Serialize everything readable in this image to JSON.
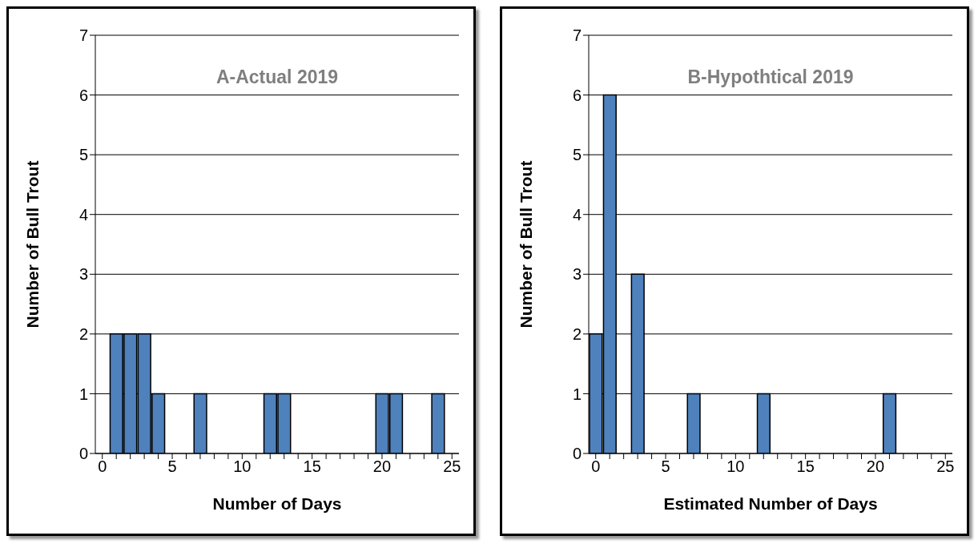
{
  "chart_data": [
    {
      "type": "histogram",
      "title": "A-Actual 2019",
      "xlabel": "Number of Days",
      "ylabel": "Number of Bull Trout",
      "color": "#4f81bd",
      "bins": [
        -0.5,
        0.5,
        1.5,
        2.5,
        3.5,
        4.5,
        5.5,
        6.5,
        7.5,
        8.5,
        9.5,
        10.5,
        11.5,
        12.5,
        13.5,
        14.5,
        15.5,
        16.5,
        17.5,
        18.5,
        19.5,
        20.5,
        21.5,
        22.5,
        23.5,
        24.5,
        25.5
      ],
      "values": [
        0,
        2,
        2,
        2,
        1,
        0,
        0,
        1,
        0,
        0,
        0,
        0,
        1,
        1,
        0,
        0,
        0,
        0,
        0,
        0,
        1,
        1,
        0,
        0,
        1,
        0
      ],
      "xlim": [
        -0.5,
        25.5
      ],
      "xticks": [
        0,
        {
          "value": 1,
          "label": null
        },
        {
          "value": 2,
          "label": null
        },
        {
          "value": 3,
          "label": null
        },
        {
          "value": 4,
          "label": null
        },
        5,
        {
          "value": 6,
          "label": null
        },
        {
          "value": 7,
          "label": null
        },
        {
          "value": 8,
          "label": null
        },
        {
          "value": 9,
          "label": null
        },
        10,
        {
          "value": 11,
          "label": null
        },
        {
          "value": 12,
          "label": null
        },
        {
          "value": 13,
          "label": null
        },
        {
          "value": 14,
          "label": null
        },
        15,
        {
          "value": 16,
          "label": null
        },
        {
          "value": 17,
          "label": null
        },
        {
          "value": 18,
          "label": null
        },
        {
          "value": 19,
          "label": null
        },
        20,
        {
          "value": 21,
          "label": null
        },
        {
          "value": 22,
          "label": null
        },
        {
          "value": 23,
          "label": null
        },
        {
          "value": 24,
          "label": null
        },
        25
      ],
      "ylim": [
        0,
        7
      ],
      "yticks": [
        0,
        1,
        2,
        3,
        4,
        5,
        6,
        7
      ],
      "grid": "y"
    },
    {
      "type": "histogram",
      "title": "B-Hypothtical 2019",
      "xlabel": "Estimated Number of Days",
      "ylabel": "Number of Bull Trout",
      "color": "#4f81bd",
      "bins": [
        -0.5,
        0.5,
        1.5,
        2.5,
        3.5,
        4.5,
        5.5,
        6.5,
        7.5,
        8.5,
        9.5,
        10.5,
        11.5,
        12.5,
        13.5,
        14.5,
        15.5,
        16.5,
        17.5,
        18.5,
        19.5,
        20.5,
        21.5,
        22.5,
        23.5,
        24.5,
        25.5
      ],
      "values": [
        2,
        6,
        0,
        3,
        0,
        0,
        0,
        1,
        0,
        0,
        0,
        0,
        1,
        0,
        0,
        0,
        0,
        0,
        0,
        0,
        0,
        1,
        0,
        0,
        0,
        0
      ],
      "xlim": [
        -0.5,
        25.5
      ],
      "xticks": [
        0,
        {
          "value": 1,
          "label": null
        },
        {
          "value": 2,
          "label": null
        },
        {
          "value": 3,
          "label": null
        },
        {
          "value": 4,
          "label": null
        },
        5,
        {
          "value": 6,
          "label": null
        },
        {
          "value": 7,
          "label": null
        },
        {
          "value": 8,
          "label": null
        },
        {
          "value": 9,
          "label": null
        },
        10,
        {
          "value": 11,
          "label": null
        },
        {
          "value": 12,
          "label": null
        },
        {
          "value": 13,
          "label": null
        },
        {
          "value": 14,
          "label": null
        },
        15,
        {
          "value": 16,
          "label": null
        },
        {
          "value": 17,
          "label": null
        },
        {
          "value": 18,
          "label": null
        },
        {
          "value": 19,
          "label": null
        },
        20,
        {
          "value": 21,
          "label": null
        },
        {
          "value": 22,
          "label": null
        },
        {
          "value": 23,
          "label": null
        },
        {
          "value": 24,
          "label": null
        },
        25
      ],
      "ylim": [
        0,
        7
      ],
      "yticks": [
        0,
        1,
        2,
        3,
        4,
        5,
        6,
        7
      ],
      "grid": "y"
    }
  ]
}
